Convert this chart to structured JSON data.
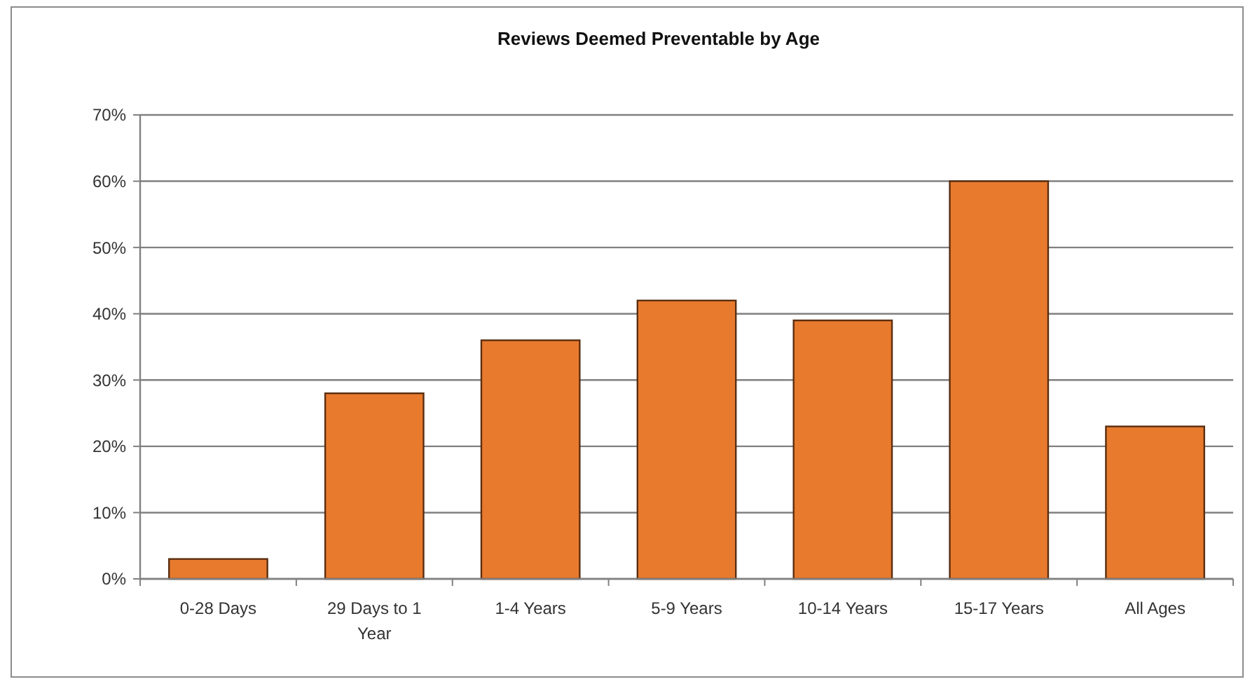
{
  "chart_data": {
    "type": "bar",
    "title": "Reviews Deemed Preventable by Age",
    "categories": [
      "0-28 Days",
      "29 Days to 1 Year",
      "1-4 Years",
      "5-9 Years",
      "10-14 Years",
      "15-17 Years",
      "All Ages"
    ],
    "values": [
      3,
      28,
      36,
      42,
      39,
      60,
      23
    ],
    "color": "#e87a2e",
    "ylim": [
      0,
      70
    ],
    "yticks": [
      {
        "value": 0,
        "label": "0%"
      },
      {
        "value": 10,
        "label": "10%"
      },
      {
        "value": 20,
        "label": "20%"
      },
      {
        "value": 30,
        "label": "30%"
      },
      {
        "value": 40,
        "label": "40%"
      },
      {
        "value": 50,
        "label": "50%"
      },
      {
        "value": 60,
        "label": "60%"
      },
      {
        "value": 70,
        "label": "70%"
      }
    ],
    "grid": "y"
  }
}
